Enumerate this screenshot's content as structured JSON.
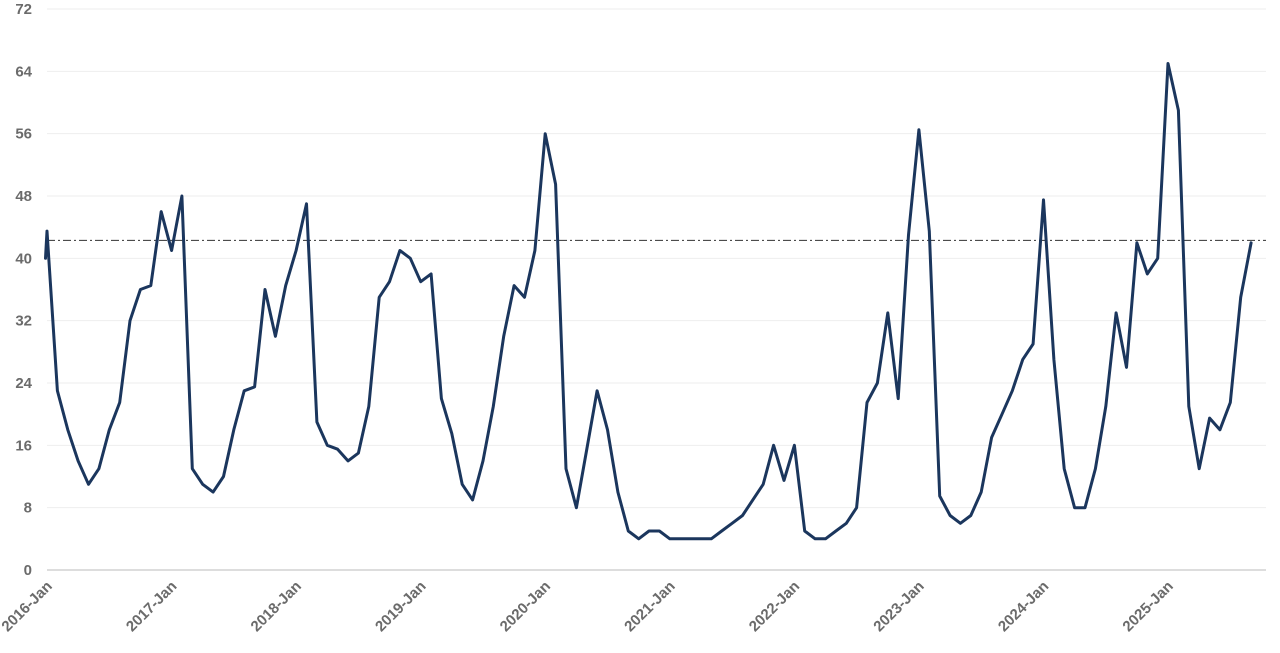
{
  "chart_data": {
    "type": "line",
    "title": "",
    "xlabel": "",
    "ylabel": "",
    "ylim": [
      0,
      72
    ],
    "y_ticks": [
      "0",
      "8",
      "16",
      "24",
      "32",
      "40",
      "48",
      "56",
      "64",
      "72"
    ],
    "x_tick_labels": [
      "2016-Jan",
      "2017-Jan",
      "2018-Jan",
      "2019-Jan",
      "2020-Jan",
      "2021-Jan",
      "2022-Jan",
      "2023-Jan",
      "2024-Jan",
      "2025-Jan"
    ],
    "x_start": "2016-01",
    "grid": "horizontal",
    "legend": "none",
    "reference_line": {
      "value": 42.3,
      "style": "dash-dot"
    },
    "colors": {
      "line": "#1b365d",
      "reference": "#333333",
      "grid": "#eeeeee",
      "axis": "#bbbbbb",
      "tick_text": "#6b6b6b"
    },
    "series": [
      {
        "values": [
          43.5,
          23,
          18,
          14,
          11,
          13,
          18,
          21.5,
          32,
          36,
          36.5,
          46,
          41,
          48,
          13,
          11,
          10,
          12,
          18,
          23,
          23.5,
          36,
          30,
          36.5,
          41,
          47,
          19,
          16,
          15.5,
          14,
          15,
          21,
          35,
          37,
          41,
          40,
          37,
          38,
          22,
          17.5,
          11,
          9,
          14,
          21,
          30,
          36.5,
          35,
          41,
          56,
          49.5,
          13,
          8,
          15.5,
          23,
          18,
          10,
          5,
          4,
          5,
          5,
          4,
          4,
          4,
          4,
          4,
          5,
          6,
          7,
          9,
          11,
          16,
          11.5,
          16,
          5,
          4,
          4,
          5,
          6,
          8,
          21.5,
          24,
          33,
          22,
          43,
          56.5,
          43.5,
          9.5,
          7,
          6,
          7,
          10,
          17,
          20,
          23,
          27,
          29,
          47.5,
          27,
          13,
          8,
          8,
          13,
          21,
          33,
          26,
          42,
          38,
          40,
          65,
          59,
          21,
          13,
          19.5,
          18,
          21.5,
          35,
          42
        ]
      }
    ]
  }
}
